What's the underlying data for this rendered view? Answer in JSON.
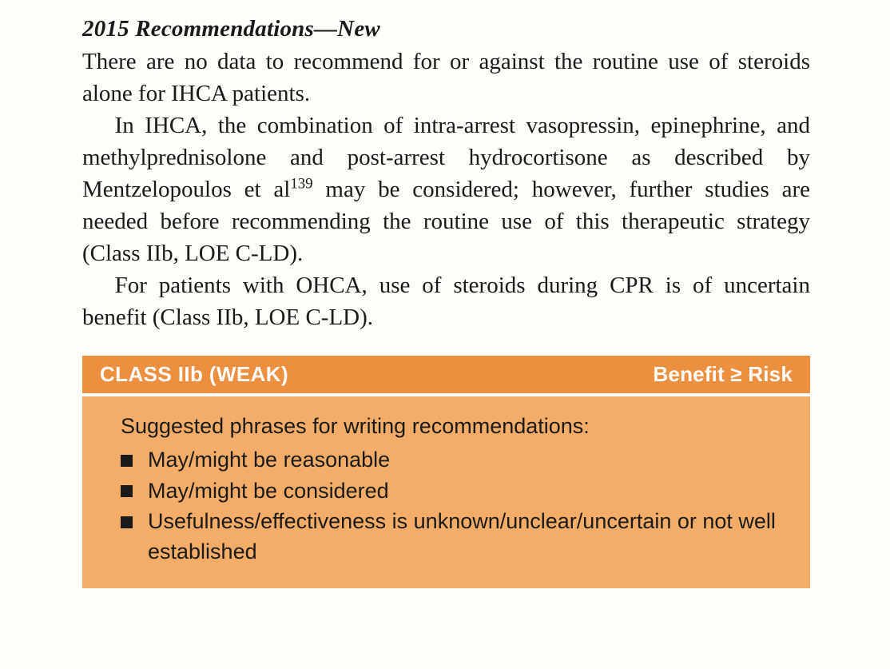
{
  "text": {
    "heading": "2015 Recommendations—New",
    "p1": "There are no data to recommend for or against the routine use of steroids alone for IHCA patients.",
    "p2a": "In IHCA, the combination of intra-arrest vasopressin, epinephrine, and methylprednisolone and post-arrest hydrocortisone as described by Mentzelopoulos et al",
    "p2_sup": "139",
    "p2b": " may be considered; however, further studies are needed before recommending the routine use of this therapeutic strategy (Class IIb, LOE C-LD).",
    "p3": "For patients with OHCA, use of steroids during CPR is of uncertain benefit (Class IIb, LOE C-LD)."
  },
  "box": {
    "header_bg": "#ec8f3e",
    "body_bg": "#f3ad68",
    "class_label": "CLASS IIb  (WEAK)",
    "benefit_label": "Benefit ≥ Risk",
    "intro": "Suggested phrases for writing recommendations:",
    "items": [
      "May/might be reasonable",
      "May/might be considered",
      "Usefulness/effectiveness is unknown/unclear/uncertain or not well established"
    ]
  }
}
